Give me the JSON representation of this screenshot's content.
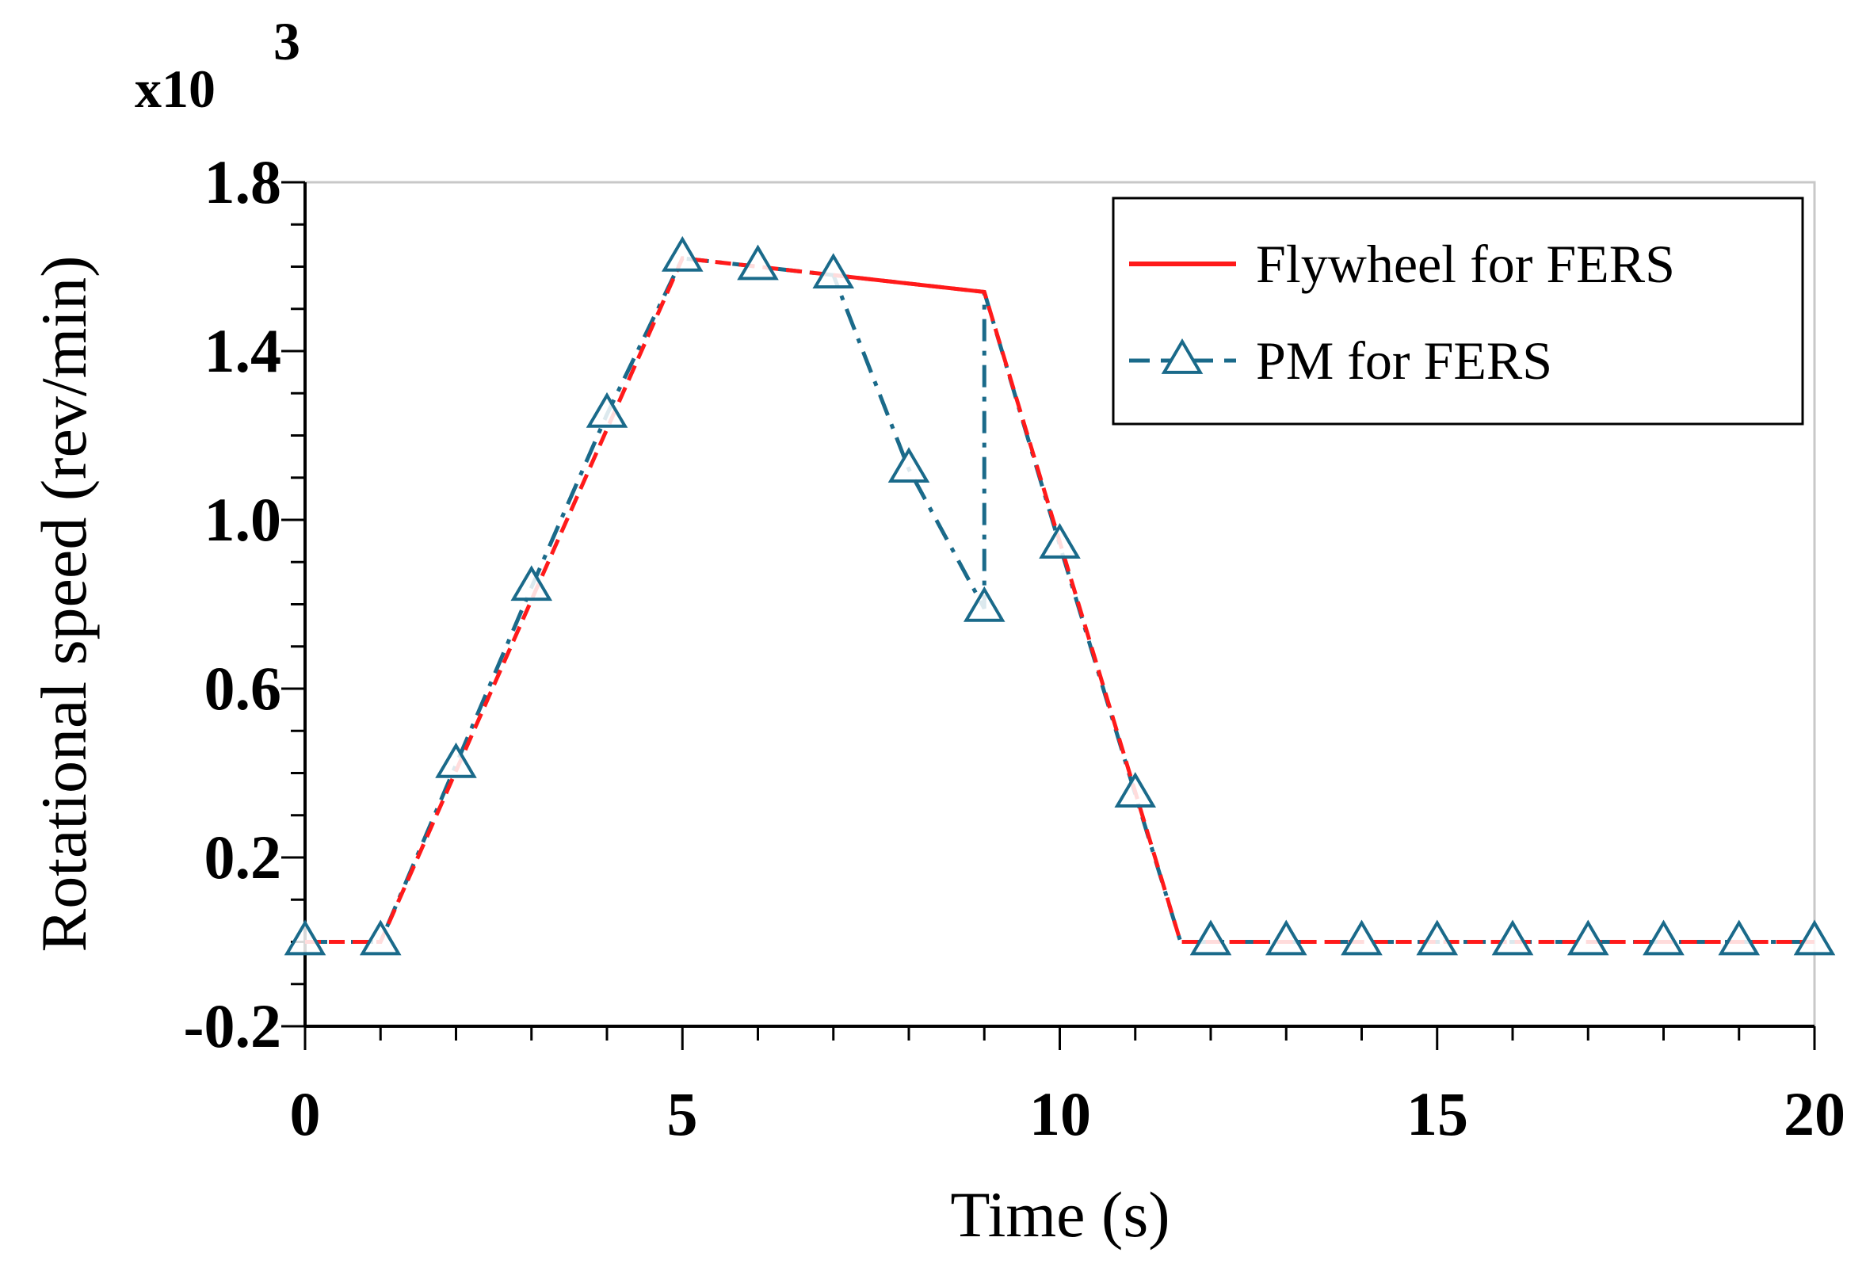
{
  "chart_data": {
    "type": "line",
    "title": "",
    "xlabel": "Time (s)",
    "ylabel": "Rotational speed (rev/min)",
    "y_multiplier": {
      "base": "x10",
      "exponent": "3"
    },
    "xlim": [
      0,
      20
    ],
    "ylim": [
      -0.2,
      1.8
    ],
    "x_ticks": [
      0,
      5,
      10,
      15,
      20
    ],
    "x_tick_labels": [
      "0",
      "5",
      "10",
      "15",
      "20"
    ],
    "y_ticks": [
      -0.2,
      0.2,
      0.6,
      1.0,
      1.4,
      1.8
    ],
    "y_tick_labels": [
      "-0.2",
      "0.2",
      "0.6",
      "1.0",
      "1.4",
      "1.8"
    ],
    "x_minor_step": 1,
    "y_minor_step": 0.2,
    "grid": false,
    "legend_position": "top-right",
    "series": [
      {
        "name": "Flywheel for FERS",
        "color": "#ff1a1a",
        "style": "solid",
        "marker": "none",
        "x": [
          0,
          1,
          5,
          9,
          11.6,
          20
        ],
        "y": [
          0,
          0,
          1.62,
          1.54,
          0,
          0
        ]
      },
      {
        "name": "PM for FERS",
        "color": "#1a6a8a",
        "style": "dash-dot",
        "marker": "triangle-open",
        "x": [
          0,
          1,
          2,
          3,
          4,
          5,
          6,
          7,
          8,
          9,
          9,
          10,
          11,
          11.6,
          12,
          13,
          14,
          15,
          16,
          17,
          18,
          19,
          20
        ],
        "y": [
          0,
          0,
          0.42,
          0.84,
          1.25,
          1.62,
          1.6,
          1.58,
          1.12,
          0.79,
          1.54,
          0.94,
          0.35,
          0,
          0,
          0,
          0,
          0,
          0,
          0,
          0,
          0,
          0
        ],
        "marker_x": [
          0,
          1,
          2,
          3,
          4,
          5,
          6,
          7,
          8,
          9,
          10,
          11,
          12,
          13,
          14,
          15,
          16,
          17,
          18,
          19,
          20
        ],
        "marker_y": [
          0,
          0,
          0.42,
          0.84,
          1.25,
          1.62,
          1.6,
          1.58,
          1.12,
          0.79,
          0.94,
          0.35,
          0,
          0,
          0,
          0,
          0,
          0,
          0,
          0,
          0
        ]
      }
    ]
  }
}
